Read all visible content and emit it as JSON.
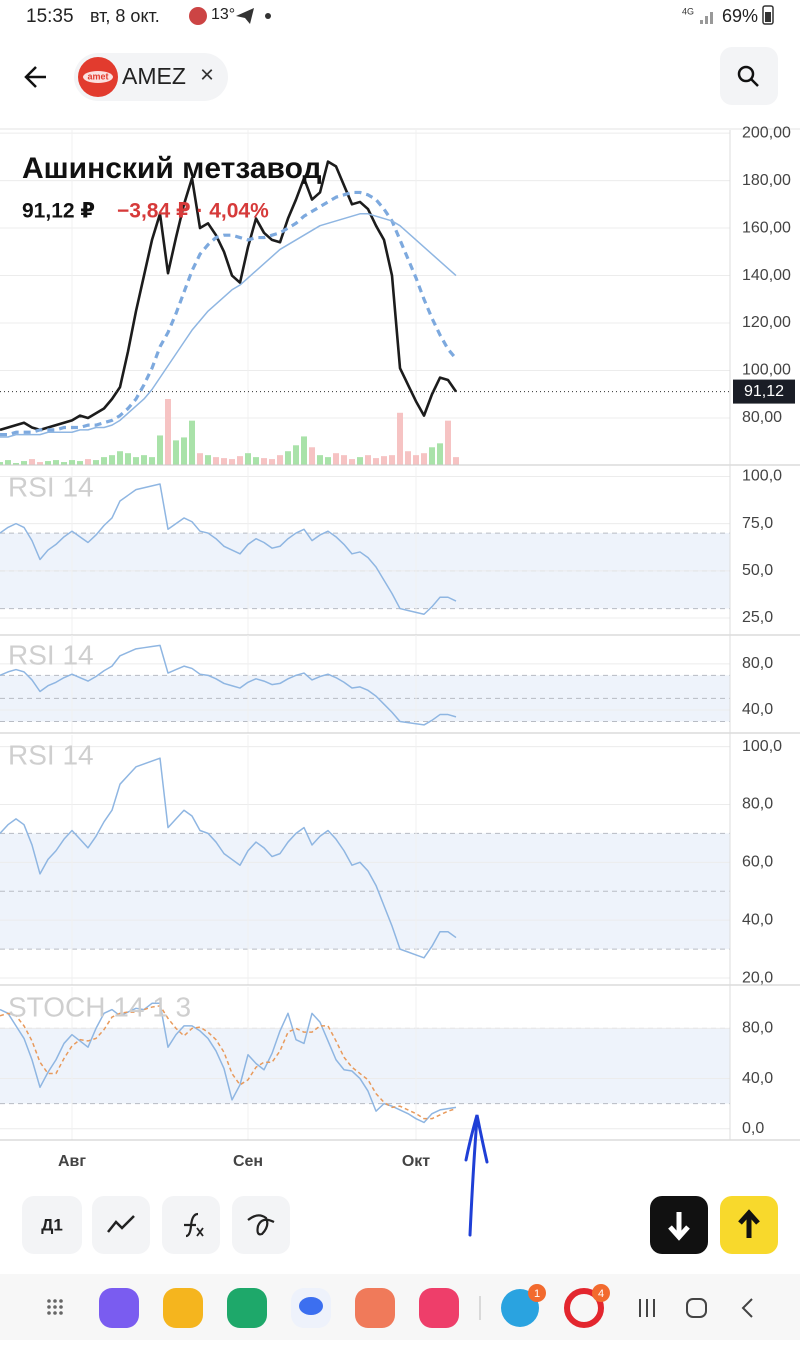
{
  "status_bar": {
    "time": "15:35",
    "date": "вт, 8 окт.",
    "temperature": "13°",
    "network": "4G",
    "battery": "69%"
  },
  "header": {
    "logo": "amet",
    "ticker": "AMEZ",
    "close": "×"
  },
  "quote": {
    "name": "Ашинский метзавод",
    "price": "91,12 ₽",
    "change": "−3,84 ₽ · 4,04%"
  },
  "chart_data": [
    {
      "type": "line",
      "grid": true,
      "ylim": [
        60.2,
        201.3
      ],
      "yticks": [
        {
          "value": 80,
          "label": "80,00"
        },
        {
          "value": 100,
          "label": "100,00"
        },
        {
          "value": 120,
          "label": "120,00"
        },
        {
          "value": 140,
          "label": "140,00"
        },
        {
          "value": 160,
          "label": "160,00"
        },
        {
          "value": 180,
          "label": "180,00"
        },
        {
          "value": 200,
          "label": "200,00"
        }
      ],
      "series": [
        {
          "color": "#1c1c1c",
          "style": "bold",
          "values": [
            75,
            76,
            77,
            78,
            76,
            75,
            76,
            77,
            78,
            79,
            81,
            80,
            82,
            84,
            88,
            93,
            108,
            125,
            140,
            155,
            166,
            141,
            156,
            170,
            181,
            160,
            162,
            157,
            150,
            140,
            137,
            152,
            164,
            158,
            155,
            154,
            164,
            172,
            181,
            172,
            175,
            188,
            186,
            178,
            170,
            171,
            168,
            161,
            155,
            140,
            101,
            94,
            87,
            81,
            90,
            97,
            96,
            91.12
          ],
          "value_labels": [
            null,
            null,
            null,
            null,
            null,
            null,
            null,
            null,
            null,
            null,
            null,
            null,
            null,
            null,
            null,
            null,
            null,
            null,
            null,
            null,
            null,
            null,
            null,
            null,
            null,
            null,
            null,
            null,
            null,
            null,
            null,
            null,
            null,
            null,
            null,
            null,
            null,
            null,
            null,
            null,
            null,
            null,
            null,
            null,
            null,
            null,
            null,
            null,
            null,
            null,
            null,
            null,
            null,
            null,
            null,
            null,
            null,
            "91,12"
          ]
        },
        {
          "color": "#7da9de",
          "style": "dashed",
          "values": [
            73,
            73,
            74,
            74,
            74,
            75,
            75,
            75,
            76,
            76,
            76,
            77,
            77,
            78,
            79,
            81,
            84,
            88,
            94,
            101,
            110,
            116,
            124,
            133,
            142,
            149,
            153,
            156,
            157,
            157,
            156,
            155,
            156,
            156,
            157,
            158,
            160,
            162,
            165,
            167,
            169,
            171,
            173,
            174,
            175,
            175,
            174,
            172,
            168,
            163,
            155,
            147,
            139,
            130,
            122,
            115,
            109,
            105
          ]
        },
        {
          "color": "#8fb6e2",
          "style": "thin",
          "values": [
            72,
            72,
            73,
            73,
            73,
            73,
            74,
            74,
            74,
            74,
            75,
            75,
            76,
            76,
            77,
            79,
            82,
            85,
            88,
            92,
            97,
            102,
            107,
            112,
            117,
            121,
            125,
            128,
            131,
            134,
            136,
            139,
            142,
            145,
            148,
            151,
            153,
            155,
            157,
            159,
            161,
            162,
            163,
            164,
            165,
            166,
            166,
            165,
            164,
            163,
            161,
            158,
            155,
            152,
            149,
            146,
            143,
            140
          ]
        }
      ],
      "volume": {
        "up_color": "#a9e2a9",
        "down_color": "#f6c3c3",
        "values": [
          3,
          5,
          2,
          4,
          6,
          3,
          4,
          5,
          3,
          5,
          4,
          6,
          5,
          8,
          10,
          14,
          12,
          8,
          10,
          8,
          30,
          67,
          25,
          28,
          45,
          12,
          10,
          8,
          7,
          6,
          9,
          12,
          8,
          7,
          6,
          10,
          14,
          20,
          29,
          18,
          10,
          8,
          12,
          10,
          6,
          8,
          10,
          7,
          9,
          10,
          53,
          14,
          10,
          12,
          18,
          22,
          45,
          8
        ]
      }
    },
    {
      "type": "line",
      "title": "RSI 14",
      "grid": true,
      "color": "#8fb6e2",
      "ylim": [
        16,
        105
      ],
      "levels": [
        30,
        50,
        70
      ],
      "yticks": [
        {
          "value": 25,
          "label": "25,0"
        },
        {
          "value": 50,
          "label": "50,0"
        },
        {
          "value": 75,
          "label": "75,0"
        },
        {
          "value": 100,
          "label": "100,0"
        }
      ],
      "values": [
        70,
        73,
        75,
        73,
        66,
        56,
        61,
        64,
        68,
        71,
        68,
        65,
        69,
        74,
        78,
        87,
        90,
        93,
        94,
        95,
        96,
        72,
        75,
        78,
        76,
        71,
        70,
        67,
        63,
        61,
        59,
        64,
        67,
        65,
        62,
        63,
        67,
        70,
        72,
        66,
        69,
        71,
        68,
        64,
        59,
        60,
        57,
        52,
        45,
        38,
        30,
        29,
        28,
        27,
        31,
        36,
        36,
        34
      ]
    },
    {
      "type": "line",
      "title": "RSI 14",
      "grid": true,
      "color": "#8fb6e2",
      "ylim": [
        20,
        105
      ],
      "levels": [
        30,
        50,
        70
      ],
      "yticks": [
        {
          "value": 40,
          "label": "40,0"
        },
        {
          "value": 80,
          "label": "80,0"
        }
      ],
      "values": [
        70,
        73,
        75,
        73,
        66,
        56,
        61,
        64,
        68,
        71,
        68,
        65,
        69,
        74,
        78,
        87,
        90,
        93,
        94,
        95,
        96,
        72,
        75,
        78,
        76,
        71,
        70,
        67,
        63,
        61,
        59,
        64,
        67,
        65,
        62,
        63,
        67,
        70,
        72,
        66,
        69,
        71,
        68,
        64,
        59,
        60,
        57,
        52,
        45,
        38,
        30,
        29,
        28,
        27,
        31,
        36,
        36,
        34
      ]
    },
    {
      "type": "line",
      "title": "RSI 14",
      "grid": true,
      "color": "#8fb6e2",
      "ylim": [
        17.6,
        104
      ],
      "levels": [
        30,
        50,
        70
      ],
      "yticks": [
        {
          "value": 20,
          "label": "20,0"
        },
        {
          "value": 40,
          "label": "40,0"
        },
        {
          "value": 60,
          "label": "60,0"
        },
        {
          "value": 80,
          "label": "80,0"
        },
        {
          "value": 100,
          "label": "100,0"
        }
      ],
      "values": [
        70,
        73,
        75,
        73,
        66,
        56,
        61,
        64,
        68,
        71,
        68,
        65,
        69,
        74,
        78,
        87,
        90,
        93,
        94,
        95,
        96,
        72,
        75,
        78,
        76,
        71,
        70,
        67,
        63,
        61,
        59,
        64,
        67,
        65,
        62,
        63,
        67,
        70,
        72,
        66,
        69,
        71,
        68,
        64,
        59,
        60,
        57,
        52,
        45,
        38,
        30,
        29,
        28,
        27,
        31,
        36,
        36,
        34
      ]
    },
    {
      "type": "line",
      "title": "STOCH 14 1 3",
      "grid": true,
      "ylim": [
        -9,
        113
      ],
      "levels": [
        20,
        80
      ],
      "yticks": [
        {
          "value": 0,
          "label": "0,0"
        },
        {
          "value": 40,
          "label": "40,0"
        },
        {
          "value": 80,
          "label": "80,0"
        }
      ],
      "categories": [
        null,
        null,
        null,
        null,
        null,
        null,
        null,
        null,
        null,
        "Авг",
        null,
        null,
        null,
        null,
        null,
        null,
        null,
        null,
        null,
        null,
        null,
        null,
        null,
        null,
        null,
        null,
        null,
        null,
        null,
        null,
        null,
        "Сен",
        null,
        null,
        null,
        null,
        null,
        null,
        null,
        null,
        null,
        null,
        null,
        null,
        null,
        null,
        null,
        null,
        null,
        null,
        null,
        null,
        "Окт",
        null,
        null,
        null,
        null,
        null
      ],
      "series": [
        {
          "color": "#8fb6e2",
          "style": "thin",
          "values": [
            95,
            92,
            82,
            72,
            55,
            33,
            45,
            55,
            68,
            75,
            70,
            65,
            80,
            92,
            95,
            90,
            93,
            96,
            95,
            100,
            100,
            65,
            75,
            82,
            82,
            78,
            72,
            62,
            48,
            23,
            35,
            59,
            52,
            47,
            60,
            78,
            92,
            71,
            68,
            92,
            85,
            70,
            55,
            47,
            46,
            40,
            30,
            14,
            20,
            18,
            15,
            12,
            8,
            5,
            12,
            15,
            16,
            17
          ]
        },
        {
          "color": "#e89a5c",
          "style": "dashed-thin",
          "values": [
            90,
            92,
            90,
            82,
            70,
            53,
            44,
            44,
            56,
            66,
            71,
            70,
            72,
            79,
            89,
            92,
            93,
            93,
            95,
            97,
            98,
            88,
            80,
            74,
            80,
            81,
            77,
            71,
            61,
            44,
            35,
            39,
            49,
            53,
            53,
            62,
            77,
            80,
            77,
            77,
            82,
            82,
            70,
            57,
            49,
            44,
            39,
            28,
            21,
            17,
            18,
            15,
            12,
            8,
            8,
            11,
            14,
            16
          ]
        }
      ]
    }
  ],
  "toolbar": {
    "timeframe": "Д1"
  },
  "nav_bar": {
    "badges": [
      "1",
      "4"
    ]
  }
}
